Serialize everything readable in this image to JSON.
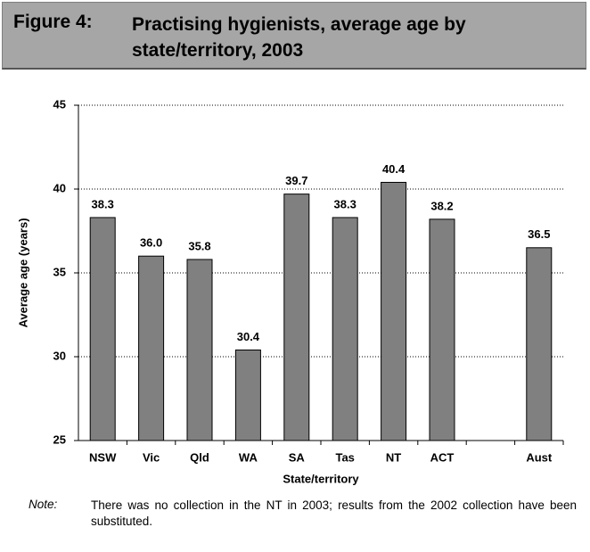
{
  "chart_data": {
    "type": "bar",
    "figure_label": "Figure 4:",
    "title": "Practising hygienists, average age by state/territory, 2003",
    "categories": [
      "NSW",
      "Vic",
      "Qld",
      "WA",
      "SA",
      "Tas",
      "NT",
      "ACT",
      null,
      "Aust"
    ],
    "values": [
      38.3,
      36.0,
      35.8,
      30.4,
      39.7,
      38.3,
      40.4,
      38.2,
      null,
      36.5
    ],
    "value_labels": [
      "38.3",
      "36.0",
      "35.8",
      "30.4",
      "39.7",
      "38.3",
      "40.4",
      "38.2",
      null,
      "36.5"
    ],
    "color": "#808080",
    "ylim": [
      25,
      45
    ],
    "yticks": [
      25,
      30,
      35,
      40,
      45
    ],
    "grid": true,
    "x_label": "State/territory",
    "y_label": "Average age (years)",
    "note_label": "Note:",
    "note": "There was no collection in the NT in 2003; results from the 2002 collection have been substituted."
  }
}
